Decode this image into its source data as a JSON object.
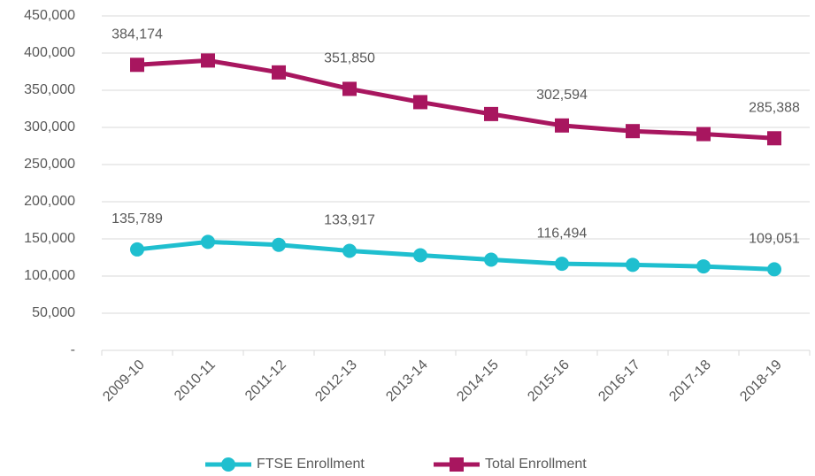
{
  "chart_data": {
    "type": "line",
    "categories": [
      "2009-10",
      "2010-11",
      "2011-12",
      "2012-13",
      "2013-14",
      "2014-15",
      "2015-16",
      "2016-17",
      "2017-18",
      "2018-19"
    ],
    "series": [
      {
        "name": "FTSE Enrollment",
        "color": "#1fbfcf",
        "marker": "circle",
        "values": [
          135789,
          146000,
          142000,
          133917,
          128000,
          122000,
          116494,
          115000,
          113000,
          109051
        ],
        "value_labels": [
          "135,789",
          null,
          null,
          "133,917",
          null,
          null,
          "116,494",
          null,
          null,
          "109,051"
        ]
      },
      {
        "name": "Total Enrollment",
        "color": "#a8165f",
        "marker": "square",
        "values": [
          384174,
          390000,
          374000,
          351850,
          334000,
          318000,
          302594,
          295000,
          291000,
          285388
        ],
        "value_labels": [
          "384,174",
          null,
          null,
          "351,850",
          null,
          null,
          "302,594",
          null,
          null,
          "285,388"
        ]
      }
    ],
    "ylim": [
      0,
      450000
    ],
    "yticks": [
      {
        "value": 0,
        "label": "-"
      },
      {
        "value": 50000,
        "label": "50,000"
      },
      {
        "value": 100000,
        "label": "100,000"
      },
      {
        "value": 150000,
        "label": "150,000"
      },
      {
        "value": 200000,
        "label": "200,000"
      },
      {
        "value": 250000,
        "label": "250,000"
      },
      {
        "value": 300000,
        "label": "300,000"
      },
      {
        "value": 350000,
        "label": "350,000"
      },
      {
        "value": 400000,
        "label": "400,000"
      },
      {
        "value": 450000,
        "label": "450,000"
      }
    ],
    "grid": true,
    "legend": "bottom"
  }
}
